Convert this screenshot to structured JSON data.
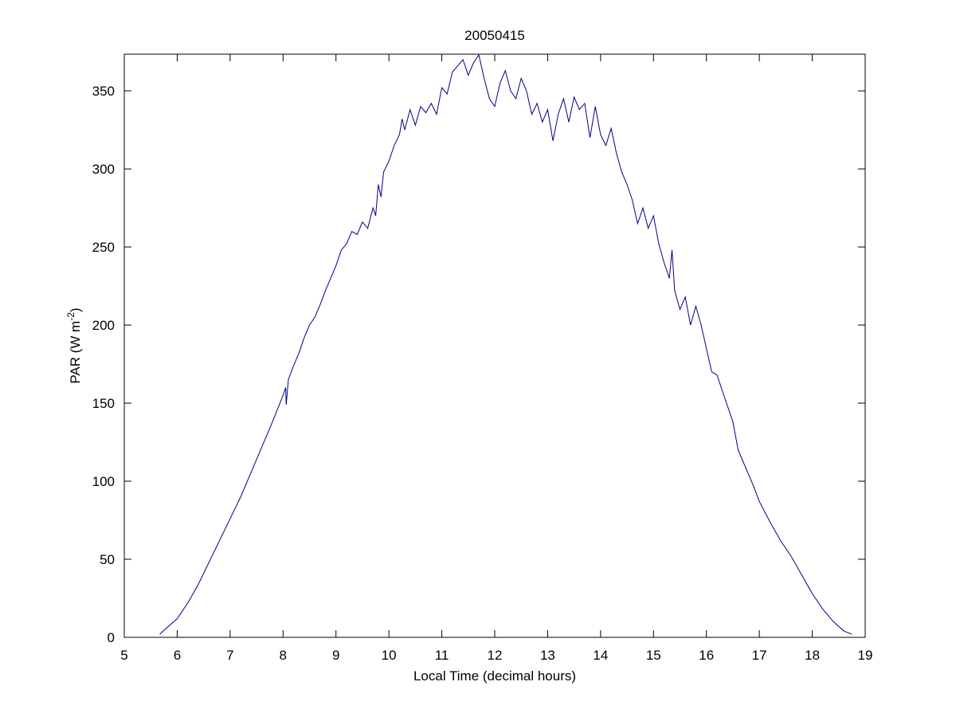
{
  "chart_data": {
    "type": "line",
    "title": "20050415",
    "x_label": "Local Time (decimal hours)",
    "y_label": [
      "PAR (W m",
      "-2",
      ")"
    ],
    "x": [
      5.67,
      5.8,
      6.0,
      6.2,
      6.4,
      6.6,
      6.8,
      7.0,
      7.2,
      7.4,
      7.6,
      7.8,
      8.0,
      8.05,
      8.06,
      8.1,
      8.2,
      8.3,
      8.4,
      8.5,
      8.6,
      8.7,
      8.8,
      8.9,
      9.0,
      9.1,
      9.2,
      9.3,
      9.4,
      9.5,
      9.6,
      9.7,
      9.75,
      9.8,
      9.85,
      9.9,
      10.0,
      10.1,
      10.2,
      10.25,
      10.3,
      10.4,
      10.5,
      10.6,
      10.7,
      10.8,
      10.9,
      11.0,
      11.1,
      11.2,
      11.3,
      11.4,
      11.5,
      11.6,
      11.7,
      11.8,
      11.9,
      12.0,
      12.1,
      12.2,
      12.3,
      12.4,
      12.5,
      12.6,
      12.7,
      12.8,
      12.9,
      13.0,
      13.1,
      13.2,
      13.3,
      13.4,
      13.5,
      13.6,
      13.7,
      13.8,
      13.9,
      14.0,
      14.1,
      14.2,
      14.3,
      14.4,
      14.5,
      14.6,
      14.7,
      14.8,
      14.9,
      15.0,
      15.1,
      15.2,
      15.3,
      15.35,
      15.4,
      15.5,
      15.6,
      15.7,
      15.8,
      15.9,
      16.0,
      16.1,
      16.2,
      16.3,
      16.4,
      16.5,
      16.6,
      16.7,
      16.8,
      16.9,
      17.0,
      17.2,
      17.4,
      17.6,
      17.8,
      18.0,
      18.2,
      18.4,
      18.6,
      18.75
    ],
    "series": [
      {
        "color": "#00008b",
        "values": [
          2,
          6,
          12,
          22,
          34,
          48,
          62,
          76,
          90,
          106,
          122,
          138,
          155,
          160,
          149,
          165,
          174,
          182,
          192,
          200,
          205,
          213,
          222,
          230,
          238,
          248,
          252,
          260,
          258,
          266,
          262,
          275,
          270,
          290,
          282,
          298,
          305,
          315,
          322,
          332,
          325,
          338,
          328,
          340,
          336,
          342,
          335,
          352,
          348,
          362,
          366,
          370,
          360,
          368,
          373,
          358,
          345,
          340,
          355,
          363,
          350,
          345,
          358,
          350,
          335,
          342,
          330,
          338,
          318,
          335,
          345,
          330,
          346,
          338,
          342,
          320,
          340,
          322,
          315,
          326,
          310,
          298,
          290,
          280,
          265,
          275,
          262,
          270,
          252,
          240,
          230,
          248,
          222,
          210,
          218,
          200,
          212,
          200,
          185,
          170,
          168,
          158,
          148,
          138,
          120,
          112,
          104,
          96,
          87,
          74,
          62,
          52,
          40,
          28,
          18,
          10,
          4,
          2
        ]
      }
    ],
    "xlim": [
      5,
      19
    ],
    "ylim": [
      0,
      373.5
    ],
    "xticks": [
      5,
      6,
      7,
      8,
      9,
      10,
      11,
      12,
      13,
      14,
      15,
      16,
      17,
      18,
      19
    ],
    "yticks": [
      0,
      50,
      100,
      150,
      200,
      250,
      300,
      350
    ]
  }
}
